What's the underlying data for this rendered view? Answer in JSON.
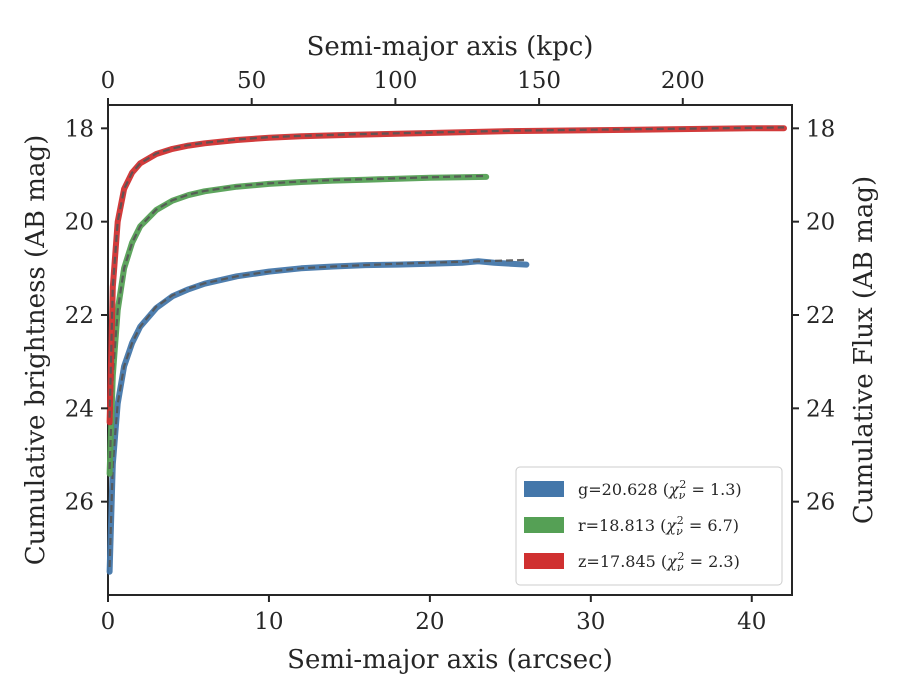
{
  "chart_data": {
    "type": "line",
    "xlabel": "Semi-major axis (arcsec)",
    "ylabel": "Cumulative brightness (AB mag)",
    "top_xlabel": "Semi-major axis (kpc)",
    "right_ylabel": "Cumulative Flux (AB mag)",
    "xlim": [
      0,
      42.5
    ],
    "ylim": [
      28.0,
      17.5
    ],
    "y_inverted": true,
    "x_ticks": [
      0,
      10,
      20,
      30,
      40
    ],
    "y_ticks": [
      18,
      20,
      22,
      24,
      26
    ],
    "top_x_ticks": [
      0,
      50,
      100,
      150,
      200
    ],
    "top_xlim": [
      0,
      238
    ],
    "legend_position": "lower-right",
    "grid": false,
    "legend": [
      {
        "label": "g=20.628 (",
        "math": "χ",
        "sub": "ν",
        "sup": "2",
        "tail": " = 1.3)",
        "color": "#4477aa"
      },
      {
        "label": "r=18.813 (",
        "math": "χ",
        "sub": "ν",
        "sup": "2",
        "tail": " = 6.7)",
        "color": "#55a055"
      },
      {
        "label": "z=17.845 (",
        "math": "χ",
        "sub": "ν",
        "sup": "2",
        "tail": " = 2.3)",
        "color": "#d03030"
      }
    ],
    "series": [
      {
        "name": "g",
        "color": "#4477aa",
        "x": [
          0.1,
          0.3,
          0.6,
          1.0,
          1.5,
          2.0,
          3.0,
          4.0,
          5.0,
          6.0,
          8.0,
          10.0,
          12.0,
          14.0,
          16.0,
          18.0,
          20.0,
          22.0,
          23.0,
          24.0,
          25.0,
          26.0
        ],
        "y": [
          27.5,
          25.2,
          23.9,
          23.1,
          22.6,
          22.25,
          21.85,
          21.6,
          21.45,
          21.33,
          21.17,
          21.07,
          21.0,
          20.96,
          20.93,
          20.92,
          20.9,
          20.88,
          20.85,
          20.88,
          20.9,
          20.92
        ],
        "model_y": [
          27.4,
          25.2,
          23.9,
          23.1,
          22.6,
          22.25,
          21.82,
          21.58,
          21.43,
          21.32,
          21.17,
          21.07,
          21.0,
          20.96,
          20.93,
          20.9,
          20.88,
          20.86,
          20.85,
          20.84,
          20.83,
          20.82
        ]
      },
      {
        "name": "r",
        "color": "#55a055",
        "x": [
          0.1,
          0.3,
          0.6,
          1.0,
          1.5,
          2.0,
          3.0,
          4.0,
          5.0,
          6.0,
          8.0,
          10.0,
          12.0,
          14.0,
          16.0,
          18.0,
          20.0,
          22.0,
          23.5
        ],
        "y": [
          25.4,
          23.3,
          21.9,
          21.0,
          20.45,
          20.1,
          19.75,
          19.55,
          19.43,
          19.35,
          19.25,
          19.19,
          19.15,
          19.12,
          19.1,
          19.08,
          19.06,
          19.05,
          19.04
        ],
        "model_y": [
          25.3,
          23.3,
          21.9,
          21.0,
          20.45,
          20.1,
          19.74,
          19.54,
          19.42,
          19.34,
          19.24,
          19.18,
          19.14,
          19.11,
          19.09,
          19.07,
          19.05,
          19.03,
          19.02
        ]
      },
      {
        "name": "z",
        "color": "#d03030",
        "x": [
          0.1,
          0.3,
          0.6,
          1.0,
          1.5,
          2.0,
          3.0,
          4.0,
          5.0,
          6.0,
          8.0,
          10.0,
          12.0,
          15.0,
          20.0,
          25.0,
          30.0,
          35.0,
          40.0,
          42.0
        ],
        "y": [
          24.3,
          21.4,
          20.0,
          19.3,
          18.95,
          18.75,
          18.55,
          18.44,
          18.37,
          18.32,
          18.25,
          18.2,
          18.17,
          18.14,
          18.1,
          18.06,
          18.04,
          18.02,
          18.0,
          18.0
        ],
        "model_y": [
          24.2,
          21.4,
          20.0,
          19.3,
          18.95,
          18.75,
          18.54,
          18.43,
          18.36,
          18.31,
          18.24,
          18.19,
          18.16,
          18.13,
          18.09,
          18.05,
          18.03,
          18.01,
          17.99,
          17.98
        ]
      }
    ]
  }
}
